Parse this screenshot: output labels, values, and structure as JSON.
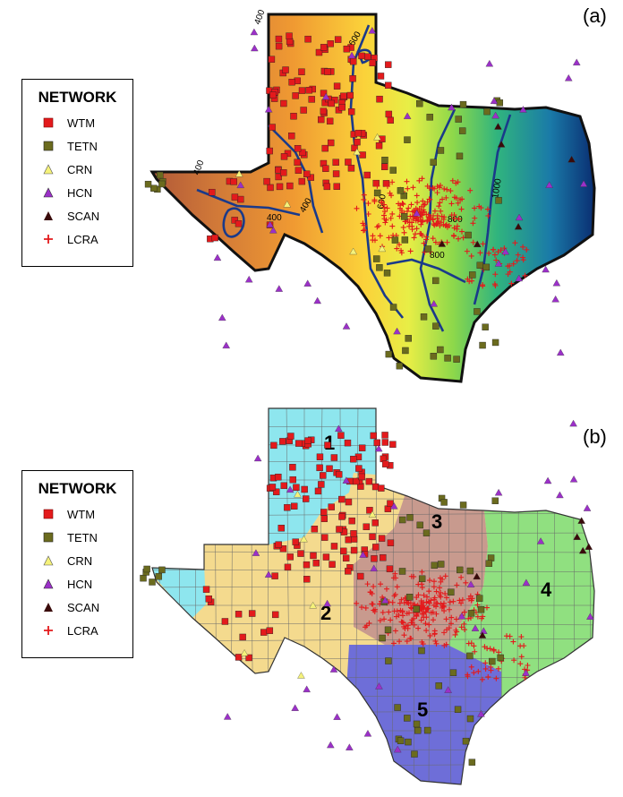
{
  "panels": [
    {
      "label": "(a)"
    },
    {
      "label": "(b)"
    }
  ],
  "legend": {
    "title": "NETWORK",
    "items": [
      {
        "name": "WTM",
        "symbol": "square",
        "color": "#e31a1c"
      },
      {
        "name": "TETN",
        "symbol": "square",
        "color": "#6b6b1e"
      },
      {
        "name": "CRN",
        "symbol": "triangle",
        "color": "#f5f27a"
      },
      {
        "name": "HCN",
        "symbol": "triangle",
        "color": "#9b30c8"
      },
      {
        "name": "SCAN",
        "symbol": "triangle",
        "color": "#3a0a0a"
      },
      {
        "name": "LCRA",
        "symbol": "plus",
        "color": "#e31a1c"
      }
    ]
  },
  "contours": {
    "labels": [
      "400",
      "600",
      "400",
      "400",
      "400",
      "600",
      "800",
      "800",
      "1000"
    ],
    "river_color": "#1a3a8a"
  },
  "regions": {
    "labels": [
      "1",
      "2",
      "3",
      "4",
      "5"
    ],
    "colors": {
      "1": "#8ee6ee",
      "2": "#f4da8e",
      "3": "#c89a8e",
      "4": "#90e080",
      "5": "#6e6ed8"
    }
  }
}
